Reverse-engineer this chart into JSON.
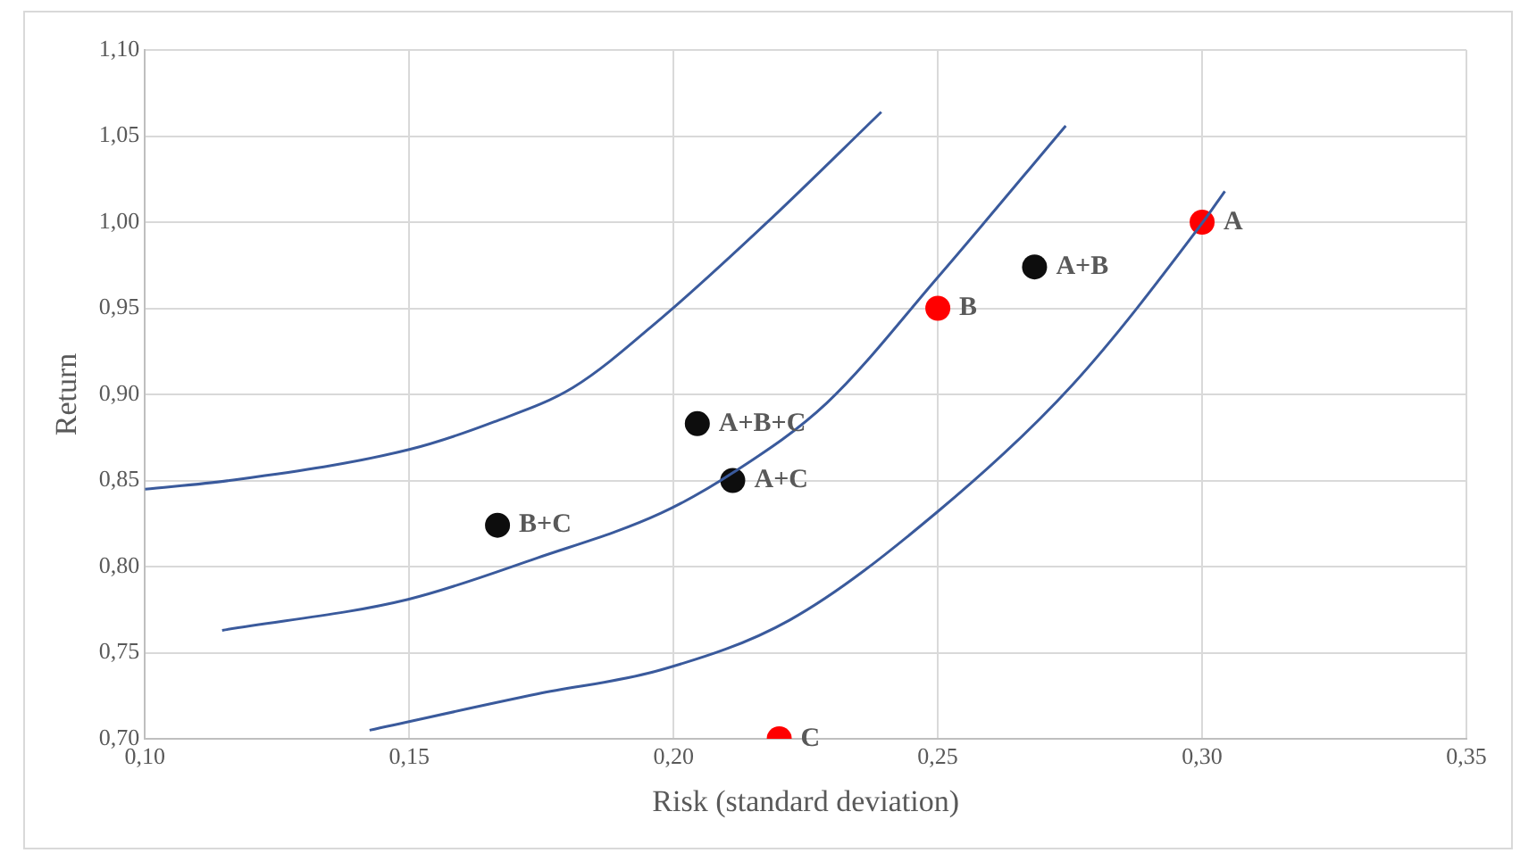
{
  "chart_data": {
    "type": "scatter",
    "xlabel": "Risk (standard deviation)",
    "ylabel": "Return",
    "xlim": [
      0.1,
      0.35
    ],
    "xticks": [
      {
        "value": 0.1,
        "label": "0,10"
      },
      {
        "value": 0.15,
        "label": "0,15"
      },
      {
        "value": 0.2,
        "label": "0,20"
      },
      {
        "value": 0.25,
        "label": "0,25"
      },
      {
        "value": 0.3,
        "label": "0,30"
      },
      {
        "value": 0.35,
        "label": "0,35"
      }
    ],
    "ylim": [
      0.7,
      1.1
    ],
    "yticks": [
      {
        "value": 0.7,
        "label": "0,70"
      },
      {
        "value": 0.75,
        "label": "0,75"
      },
      {
        "value": 0.8,
        "label": "0,80"
      },
      {
        "value": 0.85,
        "label": "0,85"
      },
      {
        "value": 0.9,
        "label": "0,90"
      },
      {
        "value": 0.95,
        "label": "0,95"
      },
      {
        "value": 1.0,
        "label": "1,00"
      },
      {
        "value": 1.05,
        "label": "1,05"
      },
      {
        "value": 1.1,
        "label": "1,10"
      }
    ],
    "grid": true,
    "legend": false,
    "marker": "circle",
    "series": [
      {
        "type": "line",
        "marker": "none",
        "color": "#3a5a9c",
        "x": [
          0.1,
          0.116,
          0.15,
          0.166,
          0.181,
          0.1976,
          0.2174,
          0.2393
        ],
        "values": [
          0.845,
          0.85,
          0.868,
          0.884,
          0.904,
          0.944,
          0.999,
          1.064
        ]
      },
      {
        "type": "line",
        "marker": "none",
        "color": "#3a5a9c",
        "x": [
          0.1146,
          0.1498,
          0.1742,
          0.1976,
          0.2115,
          0.229,
          0.25,
          0.2742
        ],
        "values": [
          0.763,
          0.781,
          0.805,
          0.831,
          0.855,
          0.895,
          0.968,
          1.056
        ]
      },
      {
        "type": "line",
        "marker": "none",
        "color": "#3a5a9c",
        "x": [
          0.1425,
          0.1742,
          0.1976,
          0.222,
          0.25,
          0.2756,
          0.2999,
          0.3043
        ],
        "values": [
          0.705,
          0.726,
          0.74,
          0.769,
          0.832,
          0.906,
          0.999,
          1.018
        ]
      },
      {
        "type": "scatter",
        "color": "#ff0000",
        "x": [
          0.3,
          0.25,
          0.22
        ],
        "values": [
          1.0,
          0.95,
          0.7
        ],
        "value_labels": [
          "A",
          "B",
          "C"
        ]
      },
      {
        "type": "scatter",
        "color": "#0d0d0d",
        "x": [
          0.2683,
          0.2112,
          0.2045,
          0.1667
        ],
        "values": [
          0.974,
          0.85,
          0.883,
          0.824
        ],
        "value_labels": [
          "A+B",
          "A+C",
          "A+B+C",
          "B+C"
        ]
      }
    ]
  }
}
